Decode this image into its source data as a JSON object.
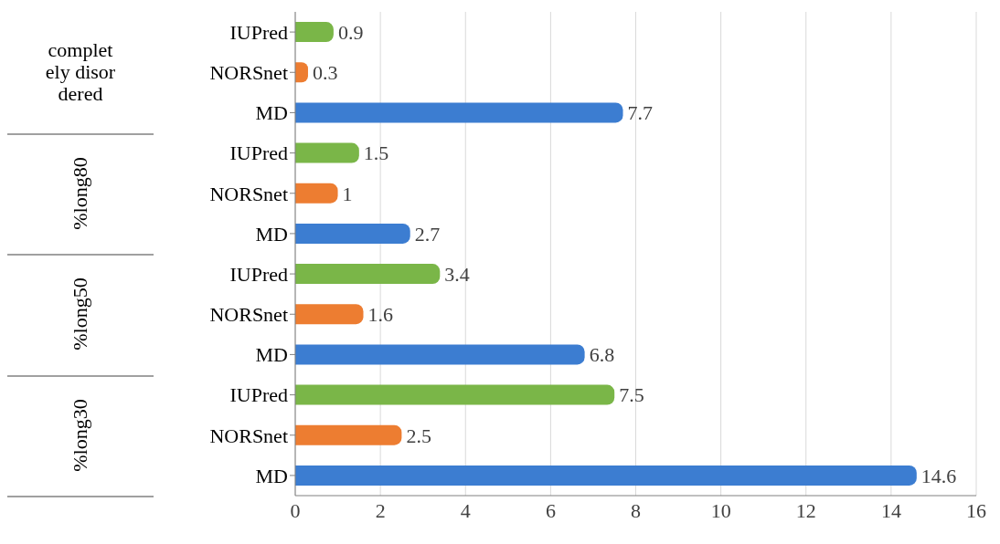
{
  "chart_data": {
    "type": "bar",
    "orientation": "horizontal",
    "categories": [
      "IUPred",
      "NORSnet",
      "MD",
      "IUPred",
      "NORSnet",
      "MD",
      "IUPred",
      "NORSnet",
      "MD",
      "IUPred",
      "NORSnet",
      "MD"
    ],
    "values": [
      0.9,
      0.3,
      7.7,
      1.5,
      1,
      2.7,
      3.4,
      1.6,
      6.8,
      7.5,
      2.5,
      14.6
    ],
    "colors": [
      "#7ab648",
      "#ed7d31",
      "#3c7dd1",
      "#7ab648",
      "#ed7d31",
      "#3c7dd1",
      "#7ab648",
      "#ed7d31",
      "#3c7dd1",
      "#7ab648",
      "#ed7d31",
      "#3c7dd1"
    ],
    "annotations": [
      "completely disordered",
      "%long80",
      "%long50",
      "%long30"
    ],
    "xlim": [
      0,
      16
    ],
    "xticks": [
      0,
      2,
      4,
      6,
      8,
      10,
      12,
      14,
      16
    ],
    "grid": "x",
    "data_labels": true
  }
}
